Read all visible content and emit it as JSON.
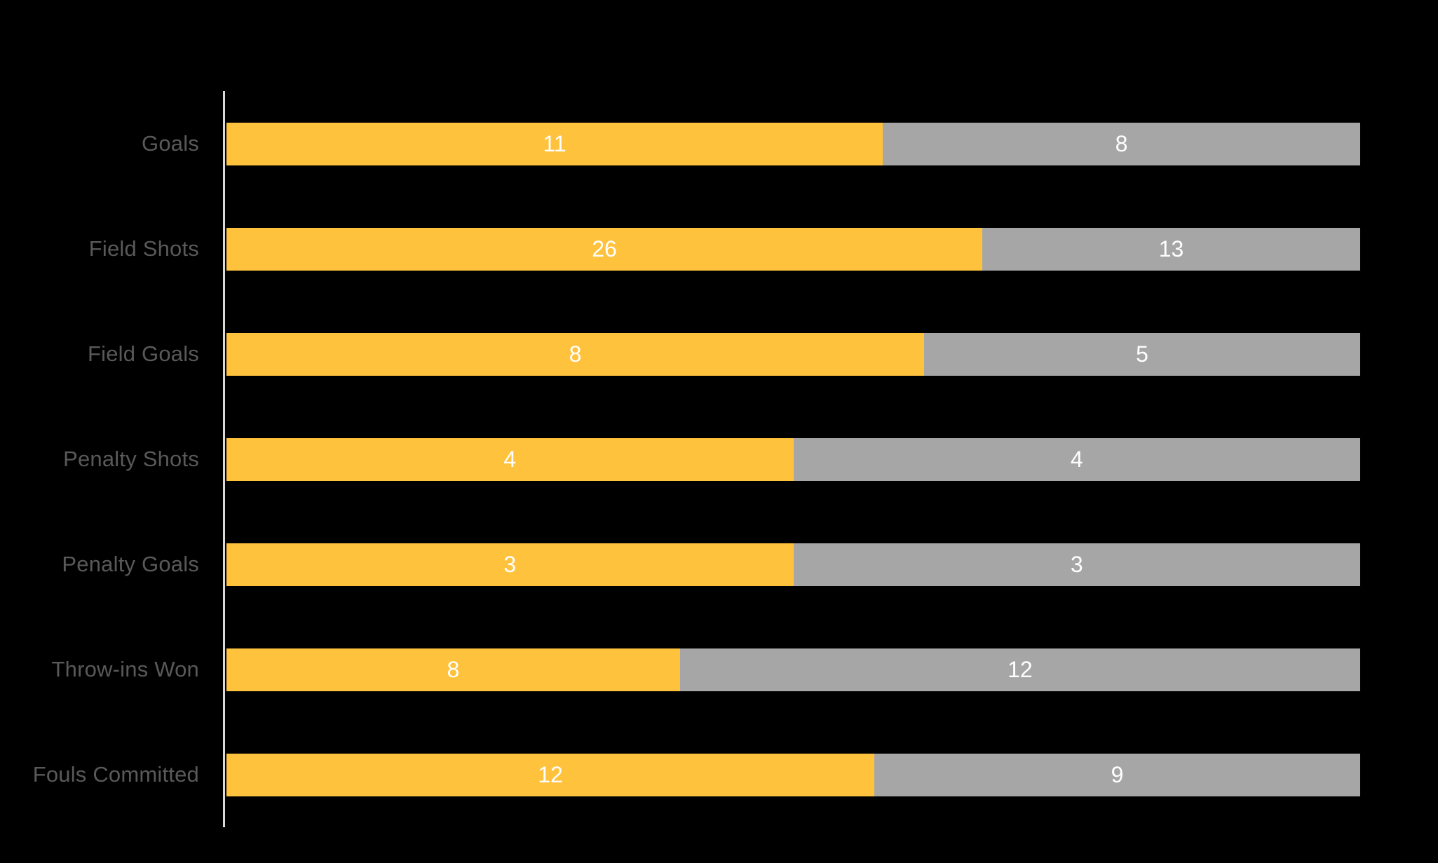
{
  "chart_data": {
    "type": "bar",
    "subtype": "100-percent-stacked",
    "orientation": "horizontal",
    "title": "",
    "xlabel": "",
    "ylabel": "",
    "legend": "none",
    "grid": false,
    "x_axis_labels_visible": false,
    "categories": [
      "Goals",
      "Field Shots",
      "Field Goals",
      "Penalty Shots",
      "Penalty Goals",
      "Throw-ins Won",
      "Fouls Committed"
    ],
    "series": [
      {
        "id": "yellow-series",
        "color": "#FFC23D",
        "values": [
          11,
          26,
          8,
          4,
          3,
          8,
          12
        ]
      },
      {
        "id": "gray-series",
        "color": "#A6A6A6",
        "values": [
          8,
          13,
          5,
          4,
          3,
          12,
          9
        ]
      }
    ]
  },
  "colors": {
    "background": "#000000",
    "bar_primary": "#FFC23D",
    "bar_secondary": "#A6A6A6",
    "category_label": "#595959",
    "value_label": "#FFFFFF",
    "axis_line": "#D9D9D9"
  }
}
